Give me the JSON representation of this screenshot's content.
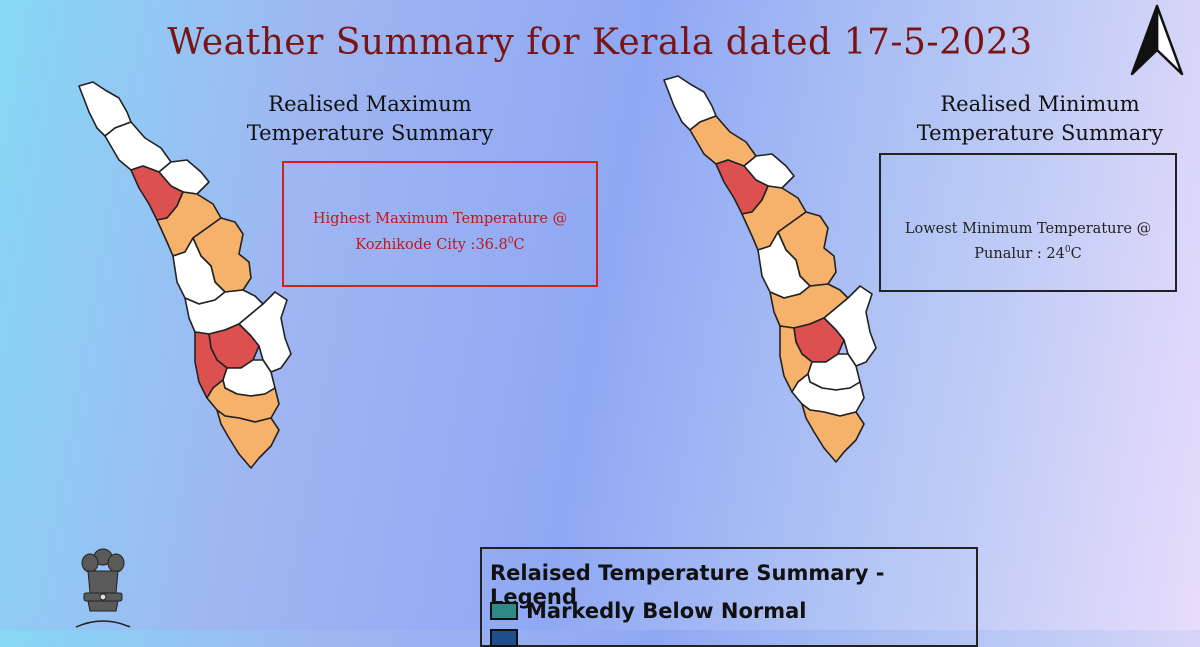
{
  "title": "Weather Summary for Kerala dated 17-5-2023",
  "max_panel": {
    "title_line1": "Realised Maximum",
    "title_line2": "Temperature  Summary",
    "box_line1": "Highest Maximum Temperature  @",
    "box_line2_prefix": "Kozhikode City :36.8",
    "box_unit_degree": "0",
    "box_unit_letter": "C"
  },
  "min_panel": {
    "title_line1": "Realised Minimum",
    "title_line2": "Temperature Summary",
    "box_line1": "Lowest Minimum Temperature @",
    "box_line2_prefix": "Punalur   :  24",
    "box_unit_degree": "0",
    "box_unit_letter": "C"
  },
  "legend": {
    "title": "Relaised Temperature Summary - Legend",
    "items": [
      {
        "label": "Markedly Below Normal",
        "color": "#2e8a86"
      }
    ]
  },
  "colors": {
    "normal": "#ffffff",
    "above_normal": "#f6b26b",
    "markedly_above": "#dc5050",
    "title": "#7a1414"
  },
  "icons": {
    "north_arrow": "north-arrow-icon",
    "emblem": "state-emblem-icon"
  }
}
